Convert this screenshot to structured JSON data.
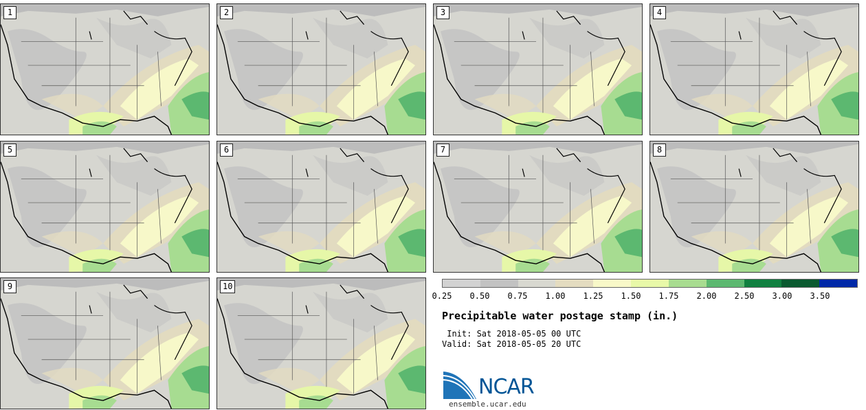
{
  "stamps": [
    {
      "label": "1"
    },
    {
      "label": "2"
    },
    {
      "label": "3"
    },
    {
      "label": "4"
    },
    {
      "label": "5"
    },
    {
      "label": "6"
    },
    {
      "label": "7"
    },
    {
      "label": "8"
    },
    {
      "label": "9"
    },
    {
      "label": "10"
    }
  ],
  "legend": {
    "ticks": [
      "0.25",
      "0.50",
      "0.75",
      "1.00",
      "1.25",
      "1.50",
      "1.75",
      "2.00",
      "2.50",
      "3.00",
      "3.50"
    ],
    "colors": [
      "#d2d2d2",
      "#c2c2c2",
      "#d8d8d0",
      "#e4dcc0",
      "#f8f8c8",
      "#e8f8a8",
      "#a8dc90",
      "#5cb870",
      "#108040",
      "#0a5a30",
      "#0028a8"
    ]
  },
  "title": "Precipitable water postage stamp (in.)",
  "init": " Init: Sat 2018-05-05 00 UTC",
  "valid": "Valid: Sat 2018-05-05 20 UTC",
  "logo": {
    "text": "NCAR",
    "url": "ensemble.ucar.edu"
  },
  "palette": {
    "land_light": "#d6d6d0",
    "land_dark": "#c3c3c3",
    "tan": "#e2dbc0",
    "yellow": "#f7f8c9",
    "lime": "#e6f7a8",
    "green": "#a7dc91",
    "deep_green": "#5cb870",
    "ocean": "#bcbcbc",
    "border": "#555555",
    "coast": "#000000"
  }
}
